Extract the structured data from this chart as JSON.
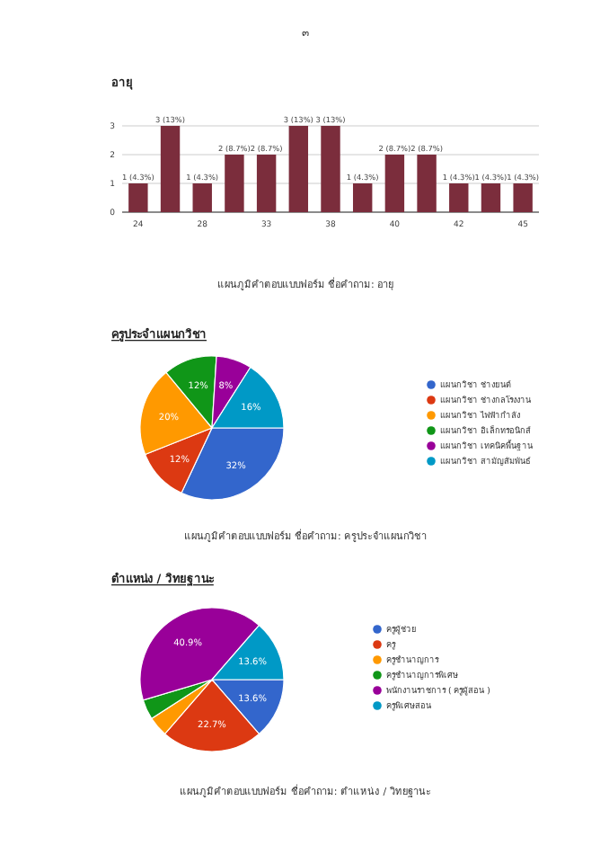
{
  "chart_data": [
    {
      "type": "bar",
      "title": "อายุ",
      "categories": [
        "24",
        null,
        "28",
        null,
        "33",
        null,
        "38",
        null,
        "40",
        null,
        "42",
        null,
        "45"
      ],
      "values": [
        1,
        3,
        1,
        2,
        2,
        3,
        3,
        1,
        2,
        2,
        1,
        1,
        1
      ],
      "color": "#7b2d3c",
      "ylim": [
        0,
        3
      ],
      "yticks": [
        0,
        1,
        2,
        3
      ],
      "grid": "y",
      "value_labels": [
        "1 (4.3%)",
        "3 (13%)",
        "1 (4.3%)",
        "2 (8.7%)",
        "2 (8.7%)",
        "3 (13%)",
        "3 (13%)",
        "1 (4.3%)",
        "2 (8.7%)",
        "2 (8.7%)",
        "1 (4.3%)",
        "1 (4.3%)",
        "1 (4.3%)"
      ],
      "annotations": [
        "๓",
        "แผนภูมิคำตอบแบบฟอร์ม ชื่อคำถาม: อายุ"
      ]
    },
    {
      "type": "pie",
      "title": "ครูประจำแผนกวิชา",
      "categories": [
        "แผนกวิชา ช่างยนต์",
        "แผนกวิชา ช่างกลโรงงาน",
        "แผนกวิชา ไฟฟ้ากำลัง",
        "แผนกวิชา อิเล็กทรอนิกส์",
        "แผนกวิชา เทคนิคพื้นฐาน",
        "แผนกวิชา สามัญสัมพันธ์"
      ],
      "values": [
        32,
        12,
        20,
        12,
        8,
        16
      ],
      "colors": [
        "#3366cc",
        "#dc3912",
        "#ff9900",
        "#109618",
        "#990099",
        "#0099c6"
      ],
      "legend": "right",
      "value_labels": [
        "32%",
        "12%",
        "20%",
        "12%",
        "8%",
        "16%"
      ],
      "annotations": [
        "แผนภูมิคำตอบแบบฟอร์ม ชื่อคำถาม: ครูประจำแผนกวิชา"
      ]
    },
    {
      "type": "pie",
      "title": "ตำแหน่ง / วิทยฐานะ",
      "categories": [
        "ครูผู้ช่วย",
        "ครู",
        "ครูชำนาญการ",
        "ครูชำนาญการพิเศษ",
        "พนักงานราชการ ( ครูผู้สอน )",
        "ครูพิเศษสอน"
      ],
      "values": [
        13.6,
        22.7,
        4.5,
        4.5,
        40.9,
        13.6
      ],
      "colors": [
        "#3366cc",
        "#dc3912",
        "#ff9900",
        "#109618",
        "#990099",
        "#0099c6"
      ],
      "legend": "right",
      "value_labels": [
        "13.6%",
        "22.7%",
        null,
        null,
        "40.9%",
        "13.6%"
      ],
      "annotations": [
        "แผนภูมิคำตอบแบบฟอร์ม ชื่อคำถาม: ตำแหน่ง / วิทยฐานะ"
      ]
    }
  ]
}
